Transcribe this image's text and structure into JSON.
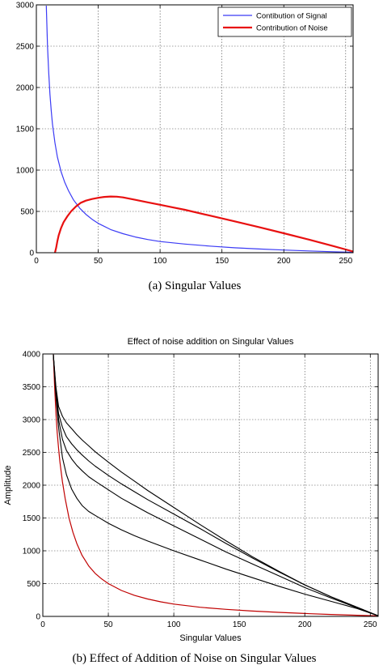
{
  "chart_data": [
    {
      "type": "line",
      "title": "",
      "xlabel": "",
      "ylabel": "",
      "xlim": [
        0,
        256
      ],
      "ylim": [
        0,
        3000
      ],
      "xticks": [
        0,
        50,
        100,
        150,
        200,
        250
      ],
      "yticks": [
        0,
        500,
        1000,
        1500,
        2000,
        2500,
        3000
      ],
      "grid": true,
      "legend": "top-right",
      "caption": "(a) Singular Values",
      "series": [
        {
          "name": "Contibution of Signal",
          "color": "#3b3bf5",
          "width": 1.2,
          "x": [
            8,
            9,
            10,
            11,
            12,
            13,
            15,
            17,
            20,
            23,
            26,
            30,
            35,
            40,
            45,
            50,
            60,
            70,
            80,
            90,
            100,
            120,
            140,
            160,
            180,
            200,
            220,
            240,
            256
          ],
          "y": [
            2990,
            2500,
            2180,
            1920,
            1720,
            1560,
            1330,
            1160,
            980,
            850,
            750,
            640,
            540,
            465,
            405,
            355,
            280,
            230,
            190,
            160,
            135,
            105,
            80,
            60,
            45,
            32,
            22,
            12,
            5
          ]
        },
        {
          "name": "Contribution of Noise",
          "color": "#e81010",
          "width": 2.2,
          "x": [
            15,
            16,
            17,
            18,
            20,
            22,
            25,
            28,
            32,
            36,
            40,
            45,
            50,
            55,
            60,
            65,
            70,
            80,
            90,
            100,
            110,
            120,
            140,
            160,
            180,
            200,
            220,
            240,
            256
          ],
          "y": [
            0,
            60,
            140,
            210,
            300,
            370,
            440,
            500,
            560,
            605,
            630,
            650,
            665,
            675,
            680,
            678,
            670,
            640,
            610,
            580,
            550,
            520,
            450,
            380,
            310,
            235,
            160,
            80,
            15
          ]
        }
      ]
    },
    {
      "type": "line",
      "title": "Effect of noise addition on Singular Values",
      "xlabel": "Singular Values",
      "ylabel": "Amplitude",
      "xlim": [
        0,
        256
      ],
      "ylim": [
        0,
        4000
      ],
      "xticks": [
        0,
        50,
        100,
        150,
        200,
        250
      ],
      "yticks": [
        0,
        500,
        1000,
        1500,
        2000,
        2500,
        3000,
        3500,
        4000
      ],
      "grid": true,
      "caption": "(b) Effect of Addition of Noise on Singular Values",
      "series": [
        {
          "color": "#c00000",
          "width": 1.2,
          "x": [
            8,
            9,
            10,
            11,
            12,
            13,
            15,
            17,
            20,
            23,
            26,
            30,
            35,
            40,
            45,
            50,
            60,
            70,
            80,
            90,
            100,
            120,
            140,
            160,
            180,
            200,
            220,
            240,
            256
          ],
          "y": [
            3990,
            3500,
            3100,
            2800,
            2560,
            2360,
            2050,
            1800,
            1500,
            1280,
            1110,
            930,
            770,
            655,
            570,
            500,
            395,
            320,
            265,
            222,
            188,
            140,
            107,
            82,
            62,
            45,
            30,
            17,
            8
          ]
        },
        {
          "color": "#000000",
          "width": 1.1,
          "x": [
            8,
            10,
            12,
            15,
            18,
            22,
            26,
            30,
            35,
            40,
            50,
            60,
            70,
            80,
            100,
            120,
            140,
            160,
            180,
            200,
            220,
            240,
            256
          ],
          "y": [
            3990,
            3350,
            2880,
            2420,
            2160,
            1940,
            1800,
            1690,
            1600,
            1540,
            1420,
            1320,
            1230,
            1150,
            1000,
            860,
            720,
            590,
            460,
            340,
            230,
            120,
            10
          ]
        },
        {
          "color": "#000000",
          "width": 1.1,
          "x": [
            8,
            10,
            12,
            15,
            18,
            22,
            26,
            30,
            35,
            40,
            50,
            60,
            70,
            80,
            100,
            120,
            140,
            160,
            180,
            200,
            220,
            240,
            256
          ],
          "y": [
            3990,
            3400,
            3000,
            2700,
            2530,
            2400,
            2300,
            2220,
            2130,
            2060,
            1930,
            1800,
            1690,
            1580,
            1380,
            1180,
            980,
            800,
            620,
            440,
            280,
            130,
            10
          ]
        },
        {
          "color": "#000000",
          "width": 1.1,
          "x": [
            8,
            10,
            12,
            15,
            18,
            22,
            26,
            30,
            35,
            40,
            50,
            60,
            70,
            80,
            100,
            120,
            140,
            160,
            180,
            200,
            220,
            240,
            256
          ],
          "y": [
            3990,
            3450,
            3090,
            2880,
            2740,
            2630,
            2540,
            2460,
            2370,
            2290,
            2150,
            2020,
            1900,
            1780,
            1560,
            1340,
            1110,
            890,
            680,
            480,
            300,
            140,
            10
          ]
        },
        {
          "color": "#000000",
          "width": 1.1,
          "x": [
            8,
            10,
            12,
            15,
            18,
            22,
            26,
            30,
            35,
            40,
            50,
            60,
            70,
            80,
            100,
            120,
            140,
            160,
            180,
            200,
            220,
            240,
            256
          ],
          "y": [
            3990,
            3500,
            3200,
            3050,
            2950,
            2860,
            2770,
            2690,
            2600,
            2510,
            2350,
            2200,
            2060,
            1920,
            1660,
            1400,
            1150,
            910,
            690,
            480,
            300,
            140,
            10
          ]
        }
      ]
    }
  ]
}
